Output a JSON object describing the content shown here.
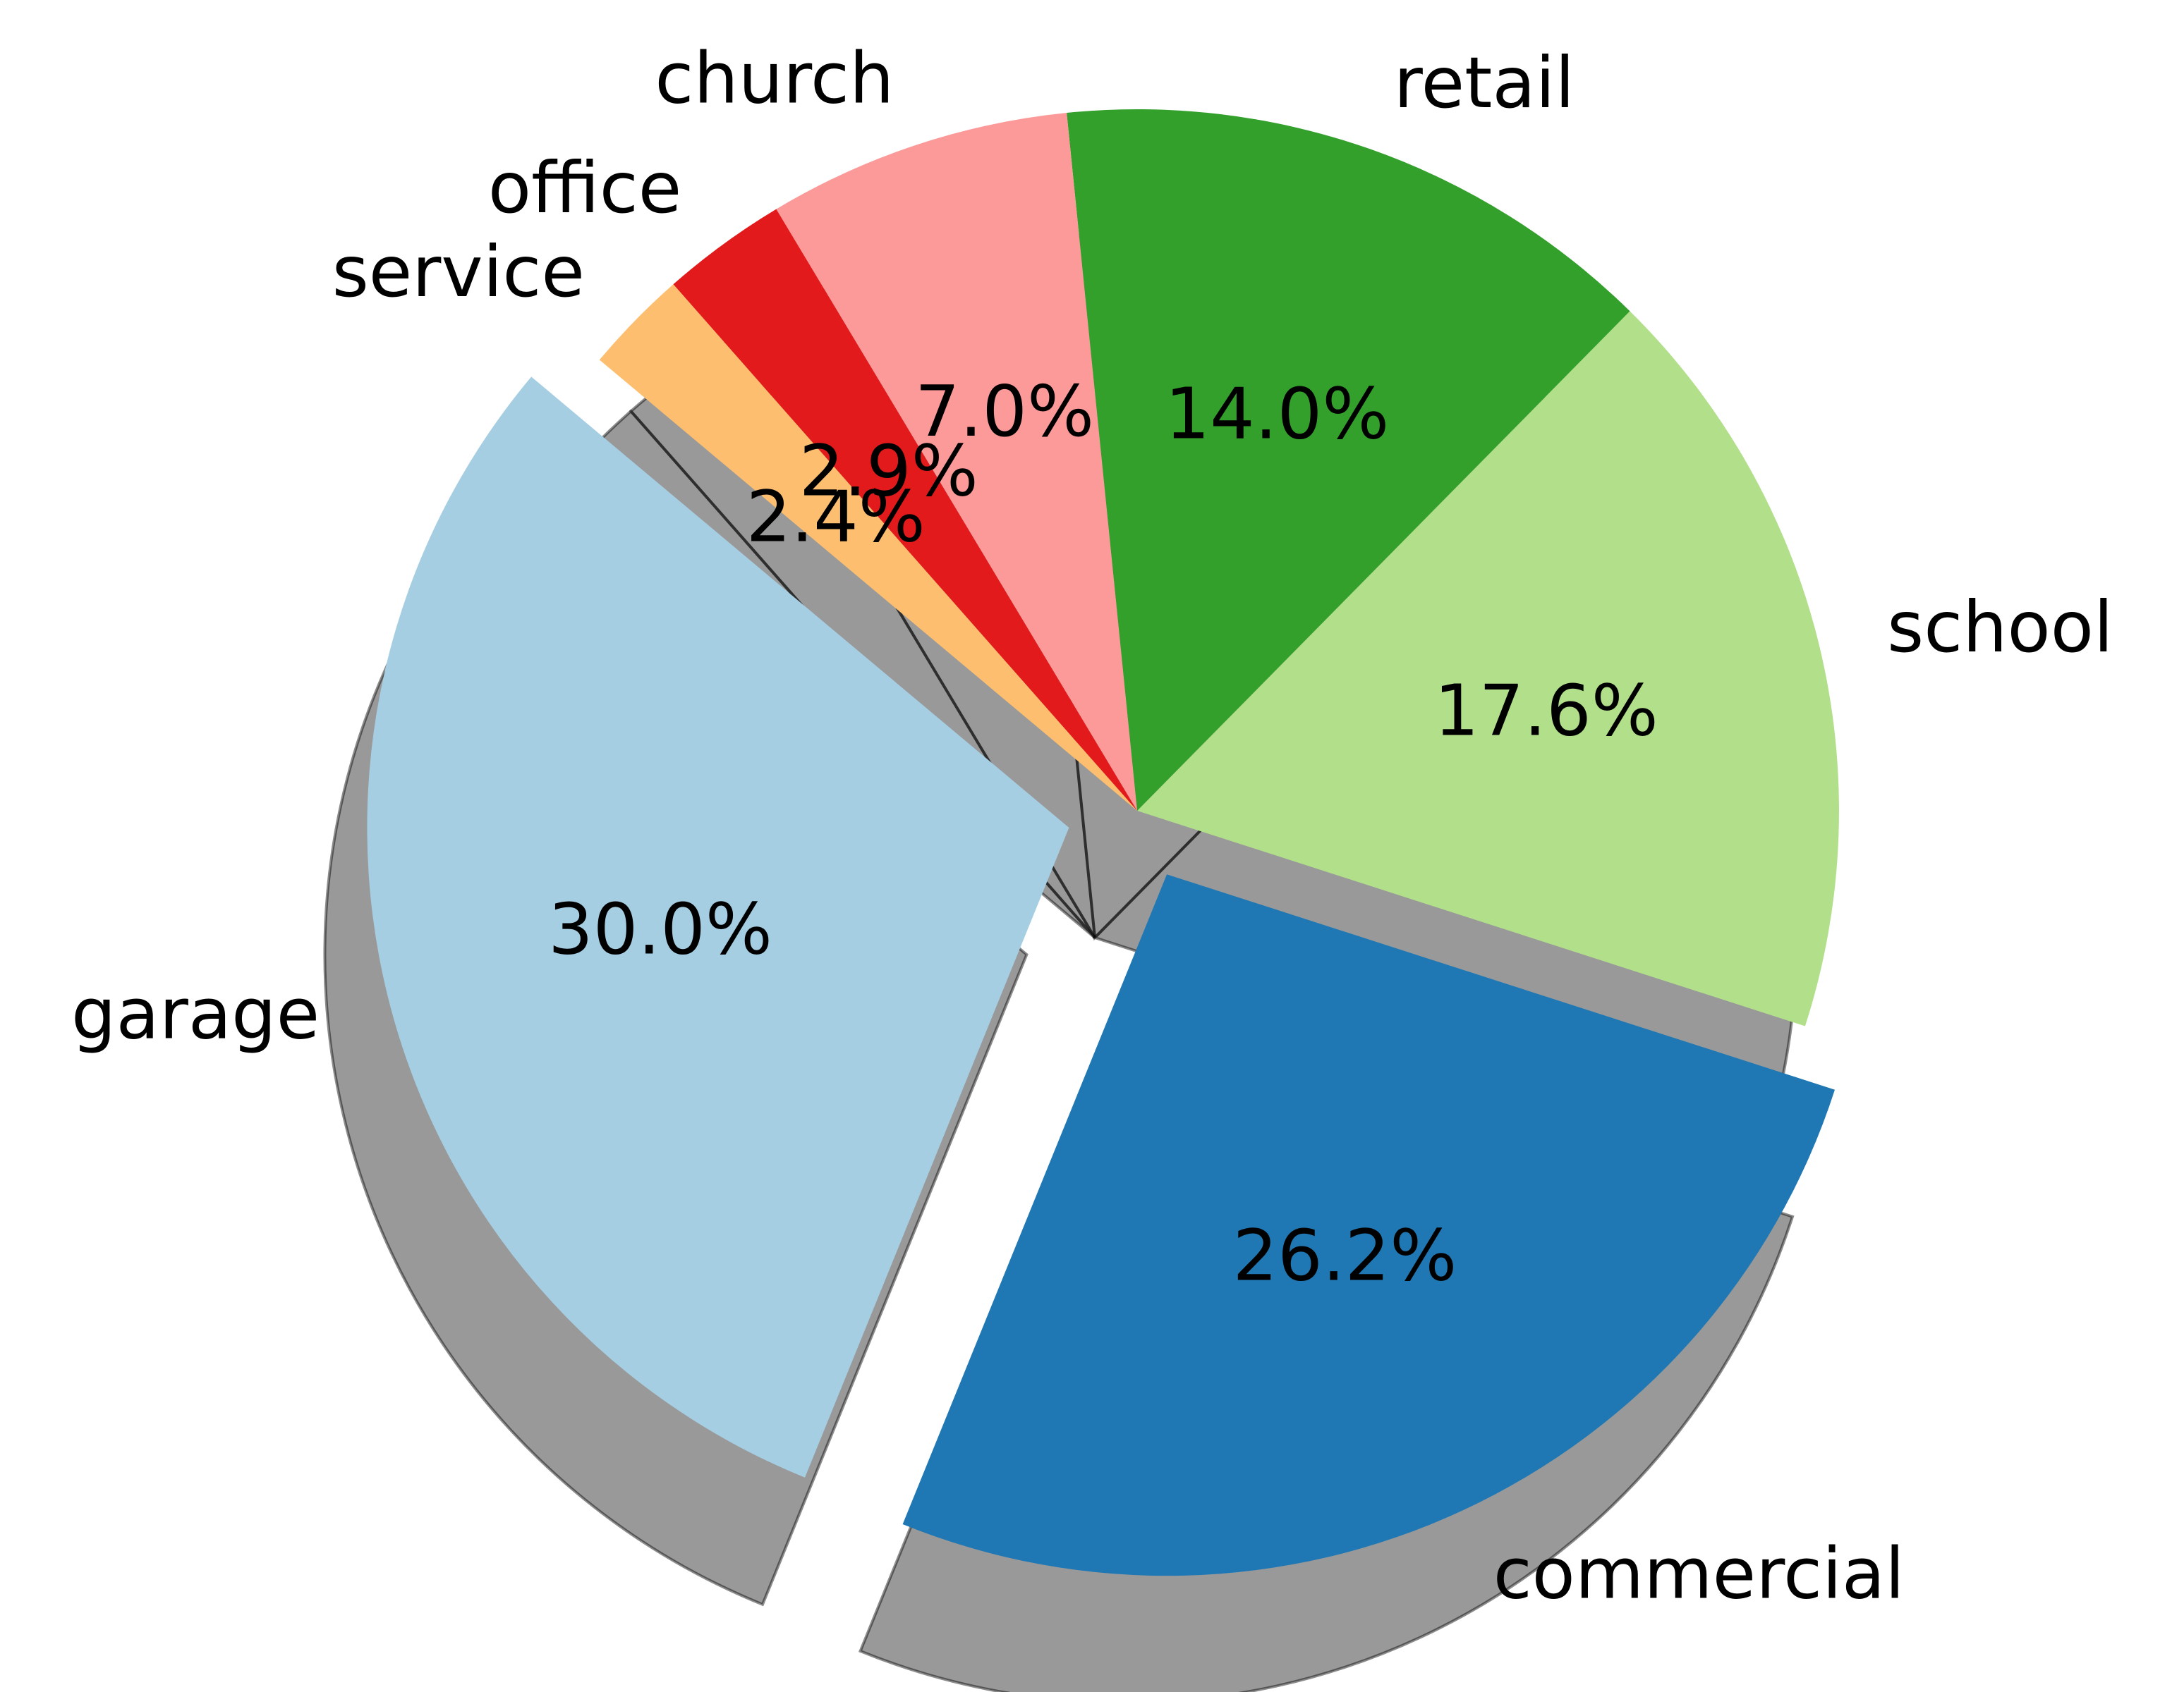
{
  "chart_data": {
    "type": "pie",
    "categories": [
      "garage",
      "commercial",
      "school",
      "retail",
      "church",
      "office",
      "service"
    ],
    "values": [
      30.0,
      26.2,
      17.6,
      14.0,
      7.0,
      2.9,
      2.4
    ],
    "percent_labels": [
      "30.0%",
      "26.2%",
      "17.6%",
      "14.0%",
      "7.0%",
      "2.9%",
      "2.4%"
    ],
    "colors": [
      "#a6cee3",
      "#1f78b4",
      "#b2df8a",
      "#33a02c",
      "#fb9a99",
      "#e31a1c",
      "#fdbf6f"
    ],
    "exploded": [
      "garage",
      "commercial"
    ],
    "shadow": true,
    "title": "",
    "legend": "none"
  }
}
